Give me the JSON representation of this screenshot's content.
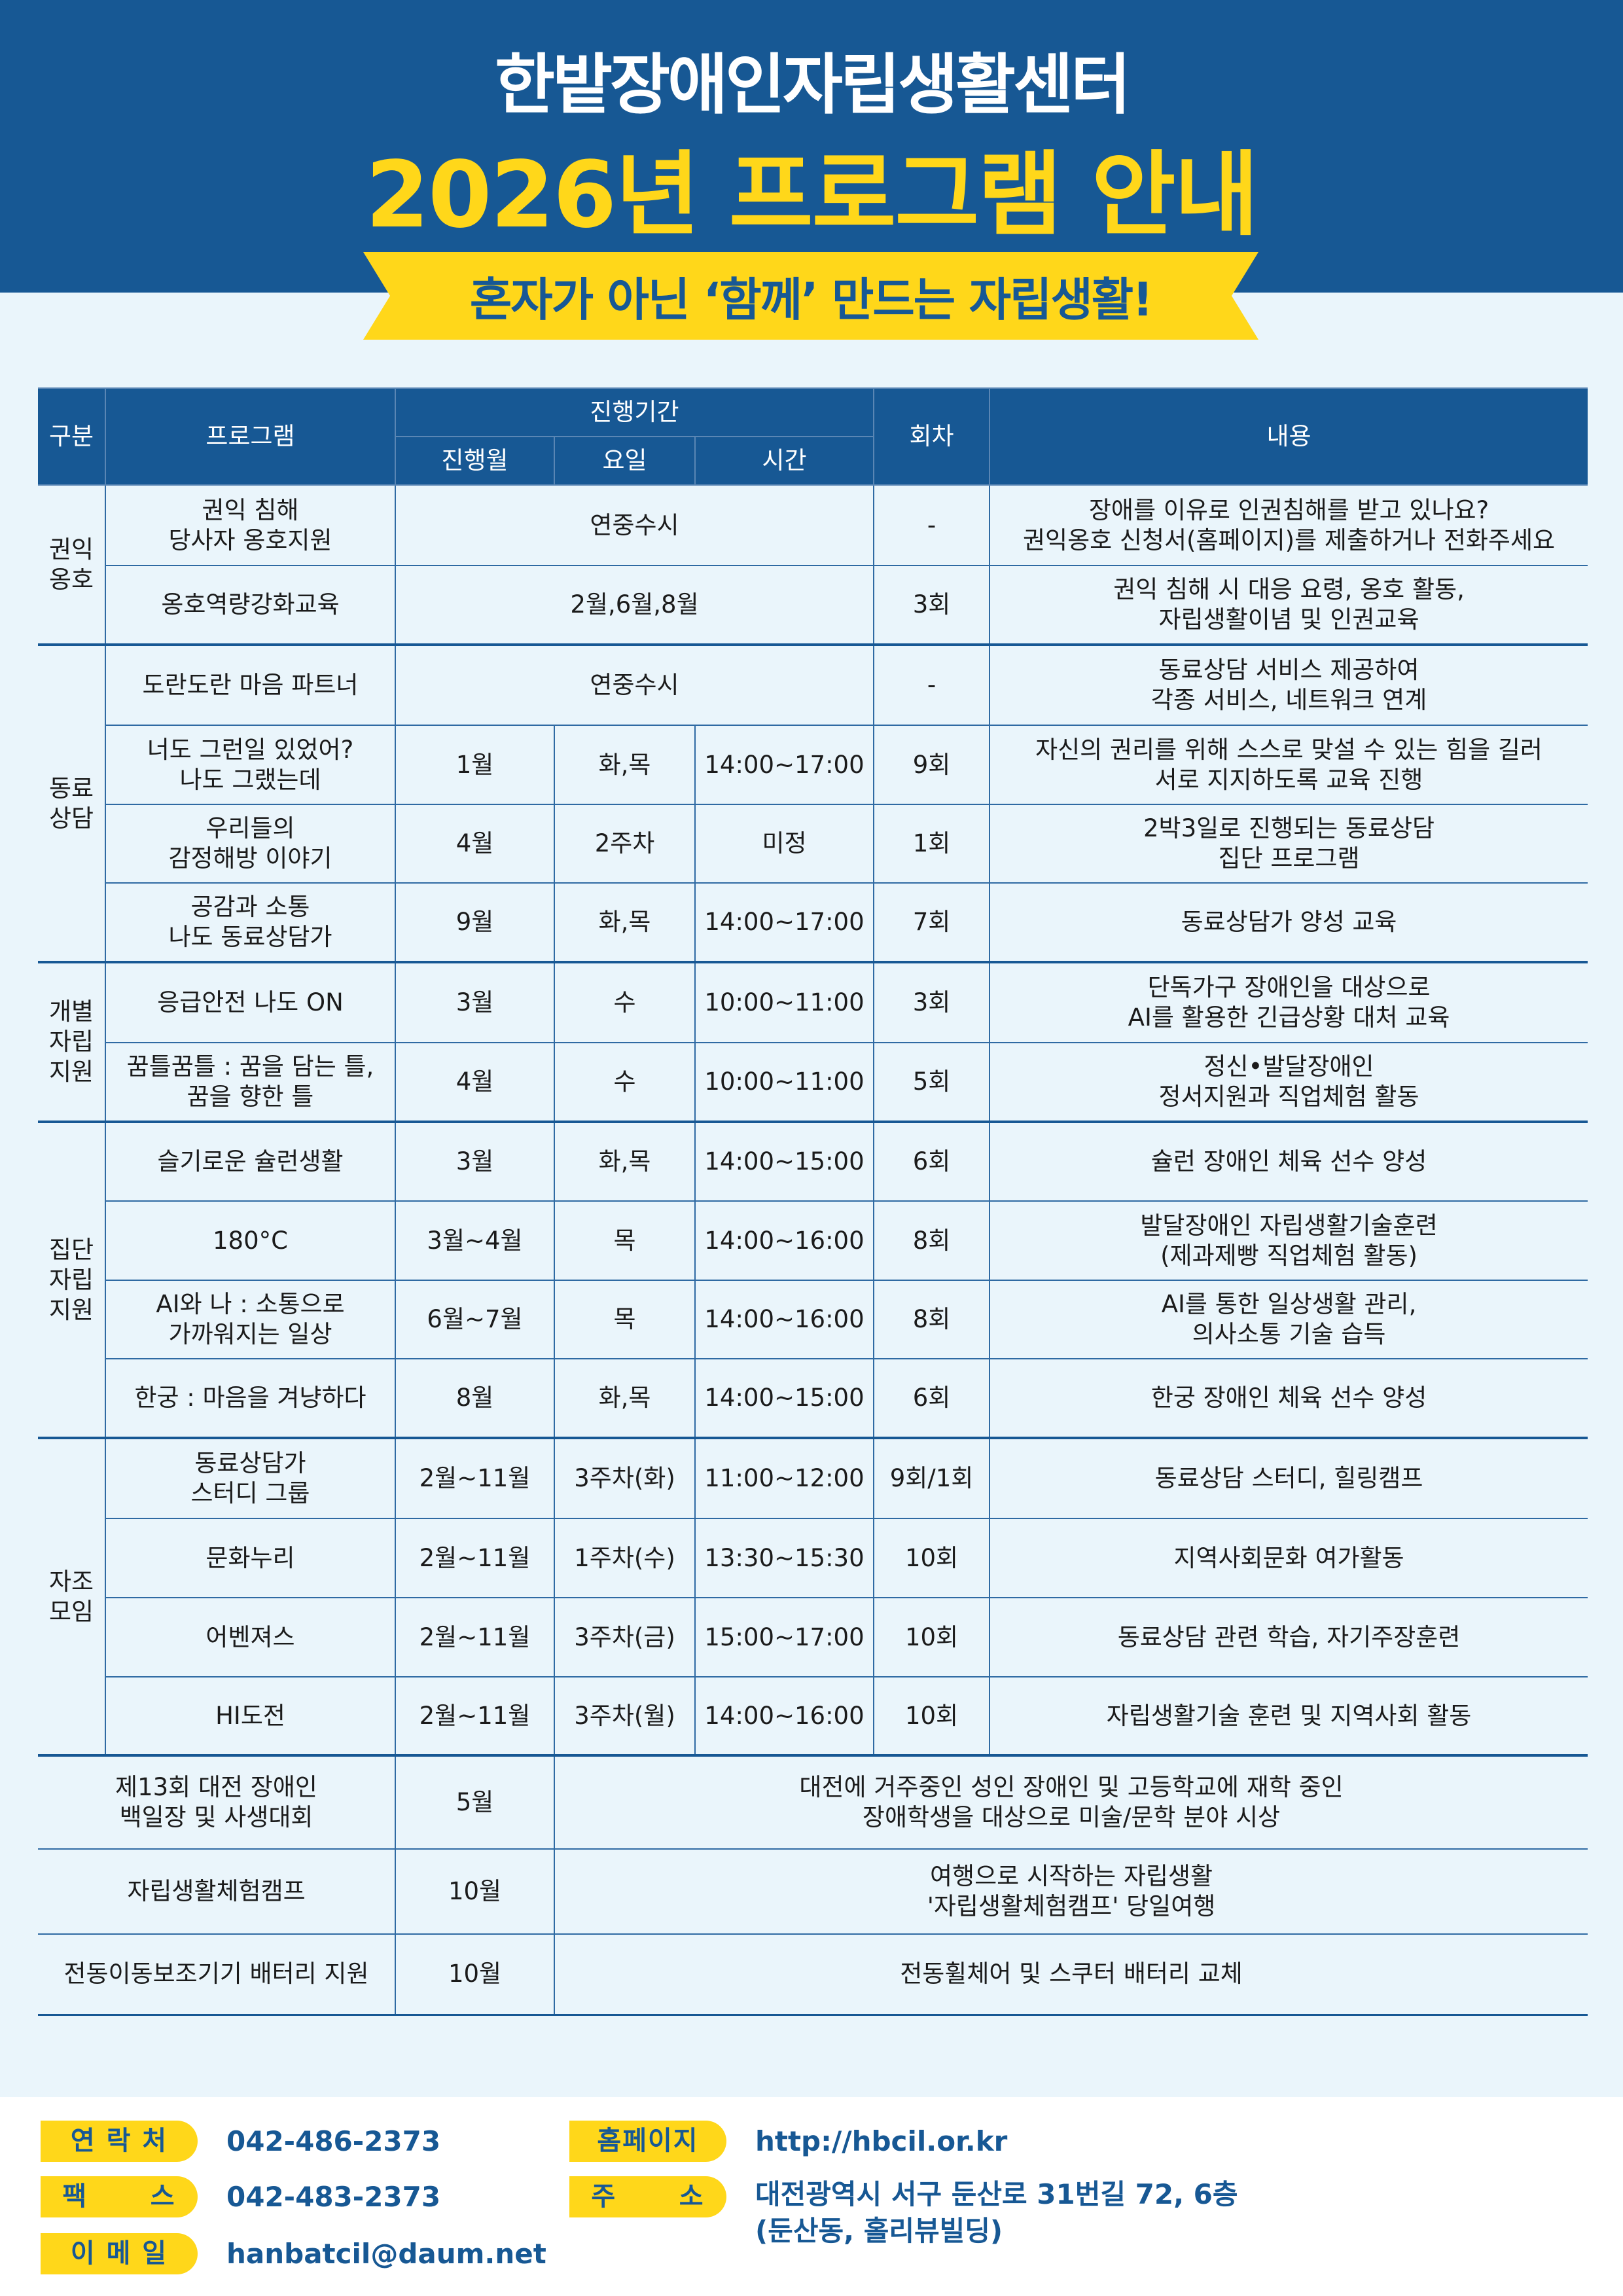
{
  "header": {
    "org_name": "한밭장애인자립생활센터",
    "title": "2026년 프로그램 안내",
    "slogan": "혼자가 아닌 ‘함께’ 만드는 자립생활!"
  },
  "colors": {
    "primary": "#175894",
    "accent": "#ffd71a",
    "background": "#eaf5fb"
  },
  "table": {
    "headers": {
      "category": "구분",
      "program": "프로그램",
      "period": "진행기간",
      "month": "진행월",
      "day": "요일",
      "time": "시간",
      "sessions": "회차",
      "content": "내용"
    },
    "groups": [
      {
        "category": "권익\n옹호",
        "rows": [
          {
            "program": "권익 침해\n당사자 옹호지원",
            "period": "연중수시",
            "sessions": "-",
            "content": "장애를 이유로 인권침해를 받고 있나요?\n권익옹호 신청서(홈페이지)를 제출하거나 전화주세요"
          },
          {
            "program": "옹호역량강화교육",
            "period": "2월,6월,8월",
            "sessions": "3회",
            "content": "권익 침해 시 대응 요령, 옹호 활동,\n자립생활이념 및 인권교육"
          }
        ]
      },
      {
        "category": "동료\n상담",
        "rows": [
          {
            "program": "도란도란 마음 파트너",
            "period": "연중수시",
            "sessions": "-",
            "content": "동료상담 서비스 제공하여\n각종 서비스, 네트워크 연계"
          },
          {
            "program": "너도 그런일 있었어?\n나도 그랬는데",
            "month": "1월",
            "day": "화,목",
            "time": "14:00~17:00",
            "sessions": "9회",
            "content": "자신의 권리를 위해 스스로 맞설 수 있는 힘을 길러\n서로 지지하도록 교육 진행"
          },
          {
            "program": "우리들의\n감정해방 이야기",
            "month": "4월",
            "day": "2주차",
            "time": "미정",
            "sessions": "1회",
            "content": "2박3일로 진행되는 동료상담\n집단 프로그램"
          },
          {
            "program": "공감과 소통\n나도 동료상담가",
            "month": "9월",
            "day": "화,목",
            "time": "14:00~17:00",
            "sessions": "7회",
            "content": "동료상담가 양성 교육"
          }
        ]
      },
      {
        "category": "개별\n자립\n지원",
        "rows": [
          {
            "program": "응급안전 나도 ON",
            "month": "3월",
            "day": "수",
            "time": "10:00~11:00",
            "sessions": "3회",
            "content": "단독가구 장애인을 대상으로\nAI를 활용한 긴급상황 대처 교육"
          },
          {
            "program": "꿈틀꿈틀 : 꿈을 담는 틀,\n꿈을 향한 틀",
            "month": "4월",
            "day": "수",
            "time": "10:00~11:00",
            "sessions": "5회",
            "content": "정신•발달장애인\n정서지원과 직업체험 활동"
          }
        ]
      },
      {
        "category": "집단\n자립\n지원",
        "rows": [
          {
            "program": "슬기로운 슐런생활",
            "month": "3월",
            "day": "화,목",
            "time": "14:00~15:00",
            "sessions": "6회",
            "content": "슐런 장애인 체육 선수 양성"
          },
          {
            "program": "180°C",
            "month": "3월~4월",
            "day": "목",
            "time": "14:00~16:00",
            "sessions": "8회",
            "content": "발달장애인 자립생활기술훈련\n(제과제빵 직업체험 활동)"
          },
          {
            "program": "AI와 나 : 소통으로\n가까워지는 일상",
            "month": "6월~7월",
            "day": "목",
            "time": "14:00~16:00",
            "sessions": "8회",
            "content": "AI를 통한 일상생활 관리,\n의사소통 기술 습득"
          },
          {
            "program": "한궁 : 마음을 겨냥하다",
            "month": "8월",
            "day": "화,목",
            "time": "14:00~15:00",
            "sessions": "6회",
            "content": "한궁 장애인 체육 선수 양성"
          }
        ]
      },
      {
        "category": "자조\n모임",
        "rows": [
          {
            "program": "동료상담가\n스터디 그룹",
            "month": "2월~11월",
            "day": "3주차(화)",
            "time": "11:00~12:00",
            "sessions": "9회/1회",
            "content": "동료상담 스터디, 힐링캠프"
          },
          {
            "program": "문화누리",
            "month": "2월~11월",
            "day": "1주차(수)",
            "time": "13:30~15:30",
            "sessions": "10회",
            "content": "지역사회문화 여가활동"
          },
          {
            "program": "어벤져스",
            "month": "2월~11월",
            "day": "3주차(금)",
            "time": "15:00~17:00",
            "sessions": "10회",
            "content": "동료상담 관련 학습, 자기주장훈련"
          },
          {
            "program": "HI도전",
            "month": "2월~11월",
            "day": "3주차(월)",
            "time": "14:00~16:00",
            "sessions": "10회",
            "content": "자립생활기술 훈련 및 지역사회 활동"
          }
        ]
      }
    ],
    "special_rows": [
      {
        "program": "제13회 대전 장애인\n백일장 및 사생대회",
        "month": "5월",
        "content": "대전에 거주중인 성인 장애인 및 고등학교에 재학 중인\n장애학생을 대상으로 미술/문학 분야 시상"
      },
      {
        "program": "자립생활체험캠프",
        "month": "10월",
        "content": "여행으로 시작하는 자립생활\n'자립생활체험캠프' 당일여행"
      },
      {
        "program": "전동이동보조기기 배터리 지원",
        "month": "10월",
        "content": "전동휠체어 및 스쿠터 배터리 교체"
      }
    ]
  },
  "footer": {
    "contact_label": "연 락 처",
    "contact": "042-486-2373",
    "fax_label": "팩      스",
    "fax": "042-483-2373",
    "email_label": "이 메 일",
    "email": "hanbatcil@daum.net",
    "homepage_label": "홈페이지",
    "homepage": "http://hbcil.or.kr",
    "address_label": "주      소",
    "address": "대전광역시 서구 둔산로 31번길 72, 6층\n(둔산동, 홀리뷰빌딩)"
  }
}
